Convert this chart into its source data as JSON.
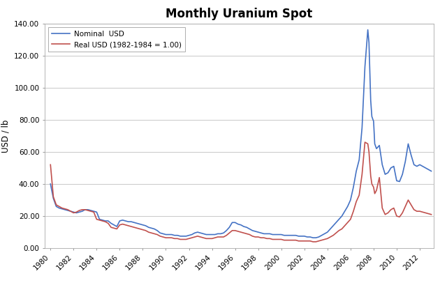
{
  "title": "Monthly Uranium Spot",
  "ylabel": "USD / lb",
  "nominal_label": "Nominal  USD",
  "real_label": "Real USD (1982-1984 = 1.00)",
  "nominal_color": "#4472C4",
  "real_color": "#C0504D",
  "line_width": 1.2,
  "ylim": [
    0,
    140
  ],
  "yticks": [
    0,
    20,
    40,
    60,
    80,
    100,
    120,
    140
  ],
  "ytick_labels": [
    "0.00",
    "20.00",
    "40.00",
    "60.00",
    "80.00",
    "100.00",
    "120.00",
    "140.00"
  ],
  "background_color": "#FFFFFF",
  "plot_bg_color": "#FFFFFF",
  "grid_color": "#C8C8C8",
  "nominal_data": [
    [
      1980.0,
      40.0
    ],
    [
      1980.25,
      31.0
    ],
    [
      1980.5,
      26.0
    ],
    [
      1980.75,
      25.0
    ],
    [
      1981.0,
      24.5
    ],
    [
      1981.25,
      24.0
    ],
    [
      1981.5,
      23.5
    ],
    [
      1981.75,
      23.0
    ],
    [
      1982.0,
      22.5
    ],
    [
      1982.25,
      22.0
    ],
    [
      1982.5,
      22.5
    ],
    [
      1982.75,
      23.0
    ],
    [
      1983.0,
      24.0
    ],
    [
      1983.25,
      24.0
    ],
    [
      1983.5,
      23.5
    ],
    [
      1983.75,
      23.0
    ],
    [
      1984.0,
      22.5
    ],
    [
      1984.25,
      18.0
    ],
    [
      1984.5,
      17.5
    ],
    [
      1984.75,
      17.0
    ],
    [
      1985.0,
      17.0
    ],
    [
      1985.25,
      15.5
    ],
    [
      1985.5,
      14.5
    ],
    [
      1985.75,
      13.5
    ],
    [
      1986.0,
      17.0
    ],
    [
      1986.25,
      17.5
    ],
    [
      1986.5,
      17.0
    ],
    [
      1986.75,
      16.5
    ],
    [
      1987.0,
      16.5
    ],
    [
      1987.25,
      16.0
    ],
    [
      1987.5,
      15.5
    ],
    [
      1987.75,
      15.0
    ],
    [
      1988.0,
      14.5
    ],
    [
      1988.25,
      14.0
    ],
    [
      1988.5,
      13.0
    ],
    [
      1988.75,
      12.5
    ],
    [
      1989.0,
      12.0
    ],
    [
      1989.25,
      11.0
    ],
    [
      1989.5,
      9.5
    ],
    [
      1989.75,
      9.0
    ],
    [
      1990.0,
      8.5
    ],
    [
      1990.25,
      8.5
    ],
    [
      1990.5,
      8.5
    ],
    [
      1990.75,
      8.0
    ],
    [
      1991.0,
      8.0
    ],
    [
      1991.25,
      7.5
    ],
    [
      1991.5,
      7.5
    ],
    [
      1991.75,
      7.5
    ],
    [
      1992.0,
      8.0
    ],
    [
      1992.25,
      8.5
    ],
    [
      1992.5,
      9.5
    ],
    [
      1992.75,
      10.0
    ],
    [
      1993.0,
      9.5
    ],
    [
      1993.25,
      9.0
    ],
    [
      1993.5,
      8.5
    ],
    [
      1993.75,
      8.5
    ],
    [
      1994.0,
      8.5
    ],
    [
      1994.25,
      8.5
    ],
    [
      1994.5,
      9.0
    ],
    [
      1994.75,
      9.0
    ],
    [
      1995.0,
      9.5
    ],
    [
      1995.25,
      11.0
    ],
    [
      1995.5,
      13.0
    ],
    [
      1995.75,
      16.0
    ],
    [
      1996.0,
      16.0
    ],
    [
      1996.25,
      15.0
    ],
    [
      1996.5,
      14.5
    ],
    [
      1996.75,
      13.5
    ],
    [
      1997.0,
      13.0
    ],
    [
      1997.25,
      12.0
    ],
    [
      1997.5,
      11.0
    ],
    [
      1997.75,
      10.5
    ],
    [
      1998.0,
      10.0
    ],
    [
      1998.25,
      9.5
    ],
    [
      1998.5,
      9.0
    ],
    [
      1998.75,
      9.0
    ],
    [
      1999.0,
      9.0
    ],
    [
      1999.25,
      8.5
    ],
    [
      1999.5,
      8.5
    ],
    [
      1999.75,
      8.5
    ],
    [
      2000.0,
      8.5
    ],
    [
      2000.25,
      8.0
    ],
    [
      2000.5,
      8.0
    ],
    [
      2000.75,
      8.0
    ],
    [
      2001.0,
      8.0
    ],
    [
      2001.25,
      8.0
    ],
    [
      2001.5,
      7.5
    ],
    [
      2001.75,
      7.5
    ],
    [
      2002.0,
      7.5
    ],
    [
      2002.25,
      7.0
    ],
    [
      2002.5,
      7.0
    ],
    [
      2002.75,
      6.5
    ],
    [
      2003.0,
      6.5
    ],
    [
      2003.25,
      7.0
    ],
    [
      2003.5,
      8.0
    ],
    [
      2003.75,
      9.0
    ],
    [
      2004.0,
      10.0
    ],
    [
      2004.25,
      12.0
    ],
    [
      2004.5,
      14.0
    ],
    [
      2004.75,
      16.0
    ],
    [
      2005.0,
      18.0
    ],
    [
      2005.25,
      20.0
    ],
    [
      2005.5,
      23.0
    ],
    [
      2005.75,
      26.0
    ],
    [
      2006.0,
      30.0
    ],
    [
      2006.25,
      38.0
    ],
    [
      2006.5,
      48.0
    ],
    [
      2006.75,
      55.0
    ],
    [
      2007.0,
      75.0
    ],
    [
      2007.25,
      113.0
    ],
    [
      2007.5,
      136.0
    ],
    [
      2007.6,
      128.0
    ],
    [
      2007.75,
      92.0
    ],
    [
      2007.85,
      82.0
    ],
    [
      2008.0,
      79.0
    ],
    [
      2008.1,
      65.0
    ],
    [
      2008.25,
      62.0
    ],
    [
      2008.5,
      64.0
    ],
    [
      2008.75,
      52.0
    ],
    [
      2009.0,
      46.0
    ],
    [
      2009.25,
      47.0
    ],
    [
      2009.5,
      50.0
    ],
    [
      2009.75,
      51.0
    ],
    [
      2010.0,
      42.0
    ],
    [
      2010.25,
      41.5
    ],
    [
      2010.5,
      46.0
    ],
    [
      2010.75,
      54.0
    ],
    [
      2011.0,
      65.0
    ],
    [
      2011.25,
      58.0
    ],
    [
      2011.5,
      52.0
    ],
    [
      2011.75,
      51.0
    ],
    [
      2012.0,
      52.0
    ],
    [
      2012.25,
      51.0
    ],
    [
      2012.5,
      50.0
    ],
    [
      2012.75,
      49.0
    ],
    [
      2013.0,
      48.0
    ]
  ],
  "real_data": [
    [
      1980.0,
      52.0
    ],
    [
      1980.25,
      32.0
    ],
    [
      1980.5,
      27.0
    ],
    [
      1980.75,
      26.0
    ],
    [
      1981.0,
      25.0
    ],
    [
      1981.25,
      24.5
    ],
    [
      1981.5,
      24.0
    ],
    [
      1981.75,
      23.0
    ],
    [
      1982.0,
      22.0
    ],
    [
      1982.25,
      22.5
    ],
    [
      1982.5,
      23.5
    ],
    [
      1982.75,
      24.0
    ],
    [
      1983.0,
      24.0
    ],
    [
      1983.25,
      23.5
    ],
    [
      1983.5,
      23.0
    ],
    [
      1983.75,
      22.5
    ],
    [
      1984.0,
      18.0
    ],
    [
      1984.25,
      17.5
    ],
    [
      1984.5,
      17.0
    ],
    [
      1984.75,
      16.5
    ],
    [
      1985.0,
      15.5
    ],
    [
      1985.25,
      13.0
    ],
    [
      1985.5,
      12.5
    ],
    [
      1985.75,
      12.0
    ],
    [
      1986.0,
      14.5
    ],
    [
      1986.25,
      15.0
    ],
    [
      1986.5,
      14.5
    ],
    [
      1986.75,
      14.0
    ],
    [
      1987.0,
      13.5
    ],
    [
      1987.25,
      13.0
    ],
    [
      1987.5,
      12.5
    ],
    [
      1987.75,
      12.0
    ],
    [
      1988.0,
      11.5
    ],
    [
      1988.25,
      11.0
    ],
    [
      1988.5,
      10.0
    ],
    [
      1988.75,
      9.5
    ],
    [
      1989.0,
      9.0
    ],
    [
      1989.25,
      8.5
    ],
    [
      1989.5,
      7.5
    ],
    [
      1989.75,
      7.0
    ],
    [
      1990.0,
      6.5
    ],
    [
      1990.25,
      6.5
    ],
    [
      1990.5,
      6.5
    ],
    [
      1990.75,
      6.0
    ],
    [
      1991.0,
      6.0
    ],
    [
      1991.25,
      5.5
    ],
    [
      1991.5,
      5.5
    ],
    [
      1991.75,
      5.5
    ],
    [
      1992.0,
      6.0
    ],
    [
      1992.25,
      6.5
    ],
    [
      1992.5,
      7.0
    ],
    [
      1992.75,
      7.5
    ],
    [
      1993.0,
      7.0
    ],
    [
      1993.25,
      6.5
    ],
    [
      1993.5,
      6.0
    ],
    [
      1993.75,
      6.0
    ],
    [
      1994.0,
      6.0
    ],
    [
      1994.25,
      6.5
    ],
    [
      1994.5,
      7.0
    ],
    [
      1994.75,
      7.0
    ],
    [
      1995.0,
      7.0
    ],
    [
      1995.25,
      8.0
    ],
    [
      1995.5,
      9.5
    ],
    [
      1995.75,
      11.0
    ],
    [
      1996.0,
      11.0
    ],
    [
      1996.25,
      10.5
    ],
    [
      1996.5,
      10.0
    ],
    [
      1996.75,
      9.5
    ],
    [
      1997.0,
      9.0
    ],
    [
      1997.25,
      8.5
    ],
    [
      1997.5,
      7.5
    ],
    [
      1997.75,
      7.0
    ],
    [
      1998.0,
      7.0
    ],
    [
      1998.25,
      6.5
    ],
    [
      1998.5,
      6.5
    ],
    [
      1998.75,
      6.0
    ],
    [
      1999.0,
      6.0
    ],
    [
      1999.25,
      5.5
    ],
    [
      1999.5,
      5.5
    ],
    [
      1999.75,
      5.5
    ],
    [
      2000.0,
      5.5
    ],
    [
      2000.25,
      5.0
    ],
    [
      2000.5,
      5.0
    ],
    [
      2000.75,
      5.0
    ],
    [
      2001.0,
      5.0
    ],
    [
      2001.25,
      5.0
    ],
    [
      2001.5,
      4.5
    ],
    [
      2001.75,
      4.5
    ],
    [
      2002.0,
      4.5
    ],
    [
      2002.25,
      4.5
    ],
    [
      2002.5,
      4.5
    ],
    [
      2002.75,
      4.0
    ],
    [
      2003.0,
      4.0
    ],
    [
      2003.25,
      4.5
    ],
    [
      2003.5,
      5.0
    ],
    [
      2003.75,
      5.5
    ],
    [
      2004.0,
      6.0
    ],
    [
      2004.25,
      7.0
    ],
    [
      2004.5,
      8.0
    ],
    [
      2004.75,
      9.5
    ],
    [
      2005.0,
      11.0
    ],
    [
      2005.25,
      12.0
    ],
    [
      2005.5,
      14.0
    ],
    [
      2005.75,
      16.0
    ],
    [
      2006.0,
      18.0
    ],
    [
      2006.25,
      23.0
    ],
    [
      2006.5,
      29.0
    ],
    [
      2006.75,
      33.0
    ],
    [
      2007.0,
      46.0
    ],
    [
      2007.25,
      66.0
    ],
    [
      2007.5,
      65.0
    ],
    [
      2007.6,
      60.0
    ],
    [
      2007.75,
      45.0
    ],
    [
      2007.85,
      40.0
    ],
    [
      2008.0,
      38.0
    ],
    [
      2008.1,
      34.0
    ],
    [
      2008.25,
      36.0
    ],
    [
      2008.5,
      44.0
    ],
    [
      2008.75,
      25.0
    ],
    [
      2009.0,
      21.0
    ],
    [
      2009.25,
      22.0
    ],
    [
      2009.5,
      24.0
    ],
    [
      2009.75,
      25.0
    ],
    [
      2010.0,
      20.0
    ],
    [
      2010.25,
      19.5
    ],
    [
      2010.5,
      22.0
    ],
    [
      2010.75,
      26.0
    ],
    [
      2011.0,
      30.0
    ],
    [
      2011.25,
      27.0
    ],
    [
      2011.5,
      24.0
    ],
    [
      2011.75,
      23.0
    ],
    [
      2012.0,
      23.0
    ],
    [
      2012.25,
      22.5
    ],
    [
      2012.5,
      22.0
    ],
    [
      2012.75,
      21.5
    ],
    [
      2013.0,
      21.0
    ]
  ],
  "xtick_years": [
    1980,
    1982,
    1984,
    1986,
    1988,
    1990,
    1992,
    1994,
    1996,
    1998,
    2000,
    2002,
    2004,
    2006,
    2008,
    2010,
    2012
  ],
  "xtick_labels": [
    "1980",
    "1982",
    "1984",
    "1986",
    "1988",
    "1990",
    "1992",
    "1994",
    "1996",
    "1998",
    "2000",
    "2002",
    "2004",
    "2006",
    "2008",
    "2010",
    "2012"
  ]
}
